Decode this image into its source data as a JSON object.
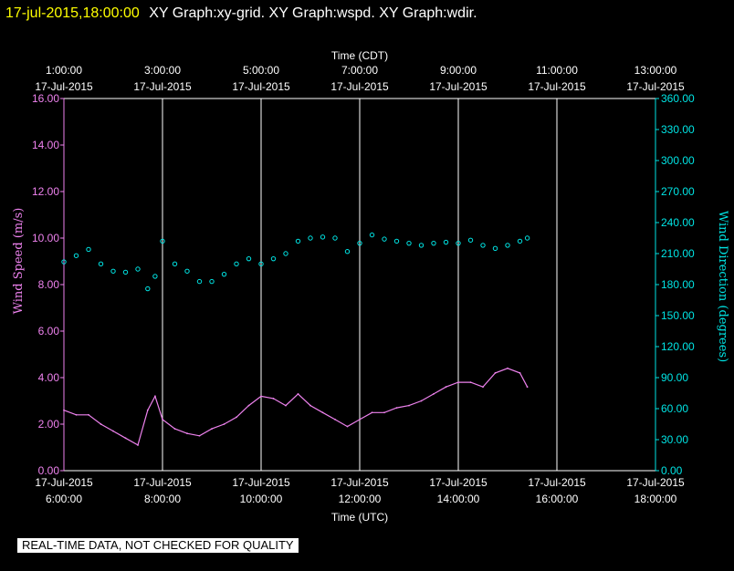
{
  "header": {
    "timestamp": "17-jul-2015,18:00:00",
    "graphs": "XY Graph:xy-grid.  XY Graph:wspd.  XY Graph:wdir."
  },
  "footer": {
    "quality_notice": "REAL-TIME DATA, NOT CHECKED FOR QUALITY"
  },
  "colors": {
    "wind_speed": "#ee82ee",
    "wind_direction": "#00e5e5",
    "grid": "#ffffff",
    "background": "#000000"
  },
  "chart_data": {
    "type": "line",
    "x_top_title": "Time (CDT)",
    "x_bottom_title": "Time (UTC)",
    "ylabel_left": "Wind Speed (m/s)",
    "ylabel_right": "Wind Direction (degrees)",
    "ylim_left": [
      0,
      16
    ],
    "ylim_right": [
      0,
      360
    ],
    "xlim_utc_hours": [
      6,
      18
    ],
    "grid": "vertical lines at each 2-hour tick",
    "top_ticks": [
      {
        "time": "1:00:00",
        "date": "17-Jul-2015"
      },
      {
        "time": "3:00:00",
        "date": "17-Jul-2015"
      },
      {
        "time": "5:00:00",
        "date": "17-Jul-2015"
      },
      {
        "time": "7:00:00",
        "date": "17-Jul-2015"
      },
      {
        "time": "9:00:00",
        "date": "17-Jul-2015"
      },
      {
        "time": "11:00:00",
        "date": "17-Jul-2015"
      },
      {
        "time": "13:00:00",
        "date": "17-Jul-2015"
      }
    ],
    "bottom_ticks": [
      {
        "date": "17-Jul-2015",
        "time": "6:00:00"
      },
      {
        "date": "17-Jul-2015",
        "time": "8:00:00"
      },
      {
        "date": "17-Jul-2015",
        "time": "10:00:00"
      },
      {
        "date": "17-Jul-2015",
        "time": "12:00:00"
      },
      {
        "date": "17-Jul-2015",
        "time": "14:00:00"
      },
      {
        "date": "17-Jul-2015",
        "time": "16:00:00"
      },
      {
        "date": "17-Jul-2015",
        "time": "18:00:00"
      }
    ],
    "left_ticks": [
      "0.00",
      "2.00",
      "4.00",
      "6.00",
      "8.00",
      "10.00",
      "12.00",
      "14.00",
      "16.00"
    ],
    "right_ticks": [
      "0.00",
      "30.00",
      "60.00",
      "90.00",
      "120.00",
      "150.00",
      "180.00",
      "210.00",
      "240.00",
      "270.00",
      "300.00",
      "330.00",
      "360.00"
    ],
    "series": [
      {
        "name": "Wind Speed (m/s)",
        "style": "line",
        "axis": "left",
        "x_utc_hours": [
          6.0,
          6.25,
          6.5,
          6.75,
          7.0,
          7.25,
          7.5,
          7.7,
          7.85,
          8.0,
          8.25,
          8.5,
          8.75,
          9.0,
          9.25,
          9.5,
          9.75,
          10.0,
          10.25,
          10.5,
          10.75,
          11.0,
          11.25,
          11.5,
          11.75,
          12.0,
          12.25,
          12.5,
          12.75,
          13.0,
          13.25,
          13.5,
          13.75,
          14.0,
          14.25,
          14.5,
          14.75,
          15.0,
          15.25,
          15.4
        ],
        "values": [
          2.6,
          2.4,
          2.4,
          2.0,
          1.7,
          1.4,
          1.1,
          2.6,
          3.2,
          2.2,
          1.8,
          1.6,
          1.5,
          1.8,
          2.0,
          2.3,
          2.8,
          3.2,
          3.1,
          2.8,
          3.3,
          2.8,
          2.5,
          2.2,
          1.9,
          2.2,
          2.5,
          2.5,
          2.7,
          2.8,
          3.0,
          3.3,
          3.6,
          3.8,
          3.8,
          3.6,
          4.2,
          4.4,
          4.2,
          3.6
        ]
      },
      {
        "name": "Wind Direction (degrees)",
        "style": "scatter",
        "axis": "right",
        "x_utc_hours": [
          6.0,
          6.25,
          6.5,
          6.75,
          7.0,
          7.25,
          7.5,
          7.7,
          7.85,
          8.0,
          8.25,
          8.5,
          8.75,
          9.0,
          9.25,
          9.5,
          9.75,
          10.0,
          10.25,
          10.5,
          10.75,
          11.0,
          11.25,
          11.5,
          11.75,
          12.0,
          12.25,
          12.5,
          12.75,
          13.0,
          13.25,
          13.5,
          13.75,
          14.0,
          14.25,
          14.5,
          14.75,
          15.0,
          15.25,
          15.4
        ],
        "values": [
          202,
          208,
          214,
          200,
          193,
          192,
          195,
          176,
          188,
          222,
          200,
          193,
          183,
          183,
          190,
          200,
          205,
          200,
          205,
          210,
          222,
          225,
          226,
          225,
          212,
          220,
          228,
          224,
          222,
          220,
          218,
          220,
          221,
          220,
          223,
          218,
          215,
          218,
          222,
          225
        ]
      }
    ]
  }
}
